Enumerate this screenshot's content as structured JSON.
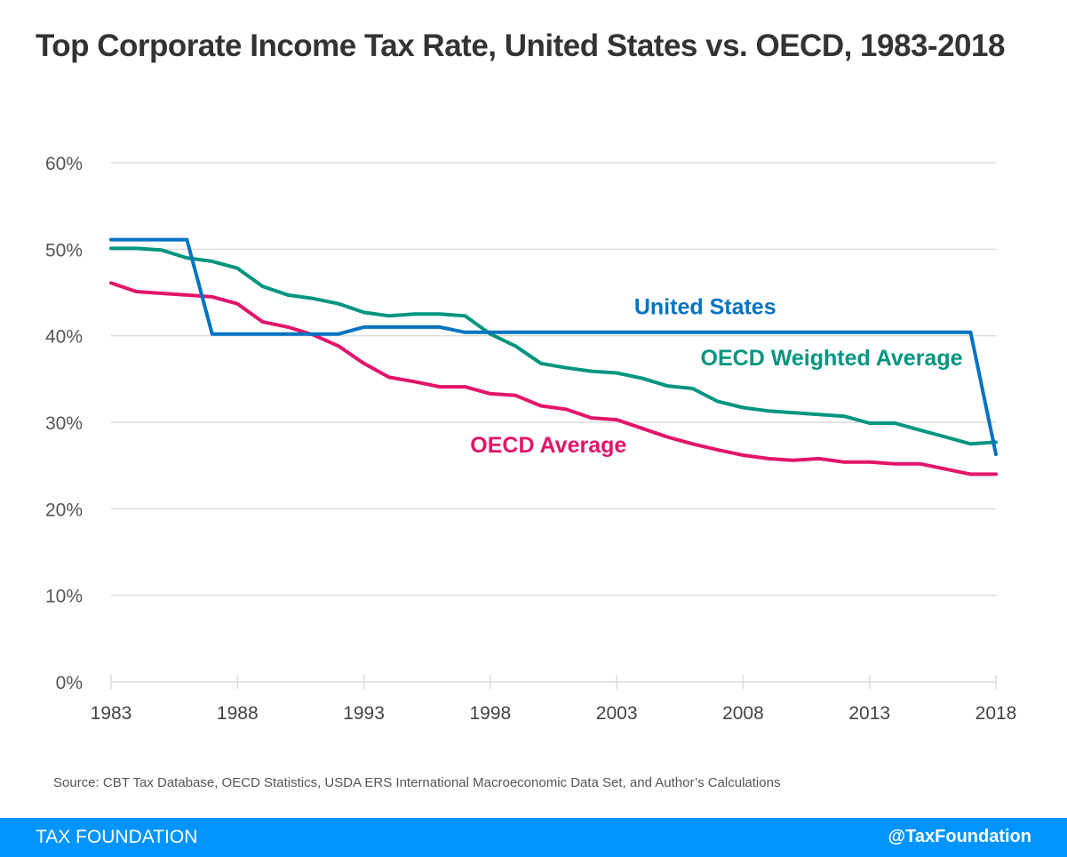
{
  "chart_data": {
    "type": "line",
    "title": "Top Corporate Income Tax Rate, United States vs. OECD, 1983-2018",
    "xlabel": "",
    "ylabel": "",
    "ylim": [
      0,
      60
    ],
    "xlim": [
      1983,
      2018
    ],
    "grid": true,
    "y_ticks": [
      "0%",
      "10%",
      "20%",
      "30%",
      "40%",
      "50%",
      "60%"
    ],
    "x_ticks": [
      "1983",
      "1988",
      "1993",
      "1998",
      "2003",
      "2008",
      "2013",
      "2018"
    ],
    "x": [
      1983,
      1984,
      1985,
      1986,
      1987,
      1988,
      1989,
      1990,
      1991,
      1992,
      1993,
      1994,
      1995,
      1996,
      1997,
      1998,
      1999,
      2000,
      2001,
      2002,
      2003,
      2004,
      2005,
      2006,
      2007,
      2008,
      2009,
      2010,
      2011,
      2012,
      2013,
      2014,
      2015,
      2016,
      2017,
      2018
    ],
    "series": [
      {
        "name": "United States",
        "color": "#0073c2",
        "label_year": 2006.5,
        "label_value": 42.5,
        "values": [
          51.1,
          51.1,
          51.1,
          51.1,
          40.2,
          40.2,
          40.2,
          40.2,
          40.2,
          40.2,
          41.0,
          41.0,
          41.0,
          41.0,
          40.4,
          40.4,
          40.4,
          40.4,
          40.4,
          40.4,
          40.4,
          40.4,
          40.4,
          40.4,
          40.4,
          40.4,
          40.4,
          40.4,
          40.4,
          40.4,
          40.4,
          40.4,
          40.4,
          40.4,
          40.4,
          26.3
        ]
      },
      {
        "name": "OECD Weighted Average",
        "color": "#00957f",
        "label_year": 2011.5,
        "label_value": 36.6,
        "values": [
          50.1,
          50.1,
          49.9,
          49.0,
          48.6,
          47.8,
          45.7,
          44.7,
          44.3,
          43.7,
          42.7,
          42.3,
          42.5,
          42.5,
          42.3,
          40.2,
          38.8,
          36.8,
          36.3,
          35.9,
          35.7,
          35.1,
          34.2,
          33.9,
          32.4,
          31.7,
          31.3,
          31.1,
          30.9,
          30.7,
          29.9,
          29.9,
          29.1,
          28.3,
          27.5,
          27.7
        ]
      },
      {
        "name": "OECD Average",
        "color": "#e3146a",
        "label_year": 2000.3,
        "label_value": 26.5,
        "values": [
          46.1,
          45.1,
          44.9,
          44.7,
          44.5,
          43.7,
          41.6,
          41.0,
          40.1,
          38.8,
          36.8,
          35.2,
          34.7,
          34.1,
          34.1,
          33.3,
          33.1,
          31.9,
          31.5,
          30.5,
          30.3,
          29.3,
          28.3,
          27.5,
          26.8,
          26.2,
          25.8,
          25.6,
          25.8,
          25.4,
          25.4,
          25.2,
          25.2,
          24.6,
          24.0,
          24.0
        ]
      }
    ]
  },
  "header": {
    "title": "Top Corporate Income Tax Rate, United States vs. OECD, 1983-2018"
  },
  "source": "Source: CBT Tax Database, OECD Statistics, USDA ERS International Macroeconomic Data Set, and Author’s Calculations",
  "footer": {
    "brand": "TAX FOUNDATION",
    "handle": "@TaxFoundation",
    "color": "#0094ff"
  }
}
